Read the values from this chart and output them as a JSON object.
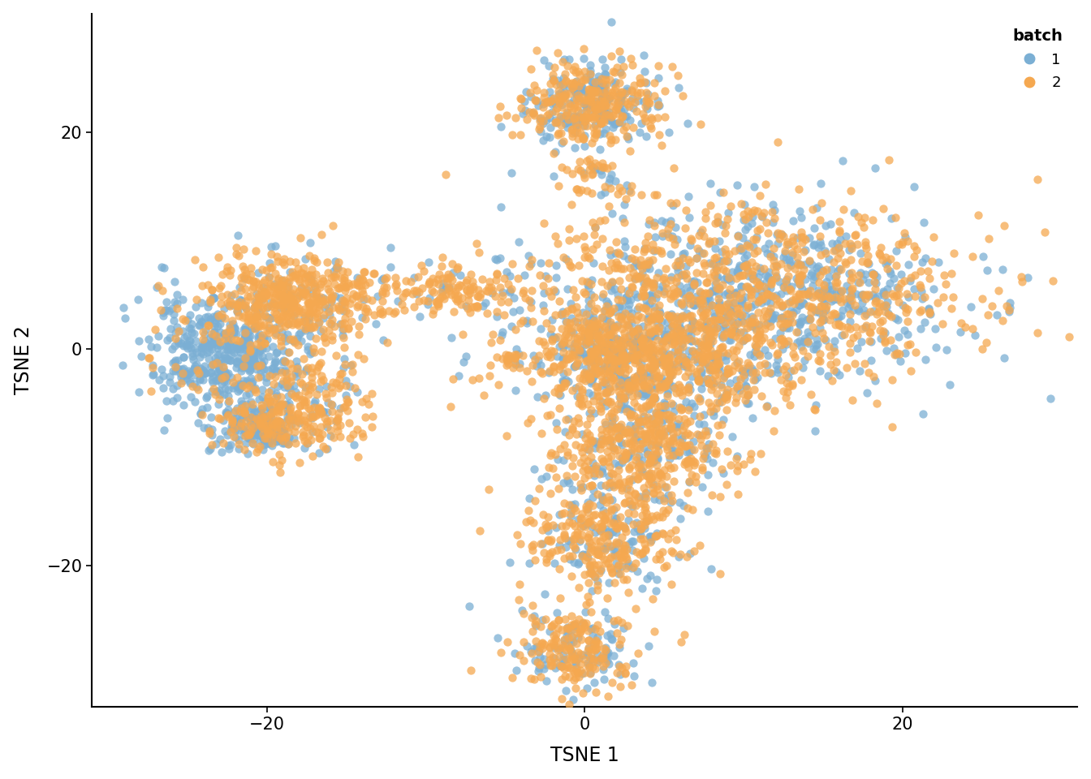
{
  "title": "",
  "xlabel": "TSNE 1",
  "ylabel": "TSNE 2",
  "batch1_color": "#7BAFD4",
  "batch2_color": "#F5A850",
  "alpha": 0.75,
  "point_size": 55,
  "xlim": [
    -31,
    31
  ],
  "ylim": [
    -33,
    31
  ],
  "xticks": [
    -20,
    0,
    20
  ],
  "yticks": [
    -20,
    0,
    20
  ],
  "legend_title": "batch",
  "legend_labels": [
    "1",
    "2"
  ],
  "background_color": "#ffffff",
  "seed": 42
}
